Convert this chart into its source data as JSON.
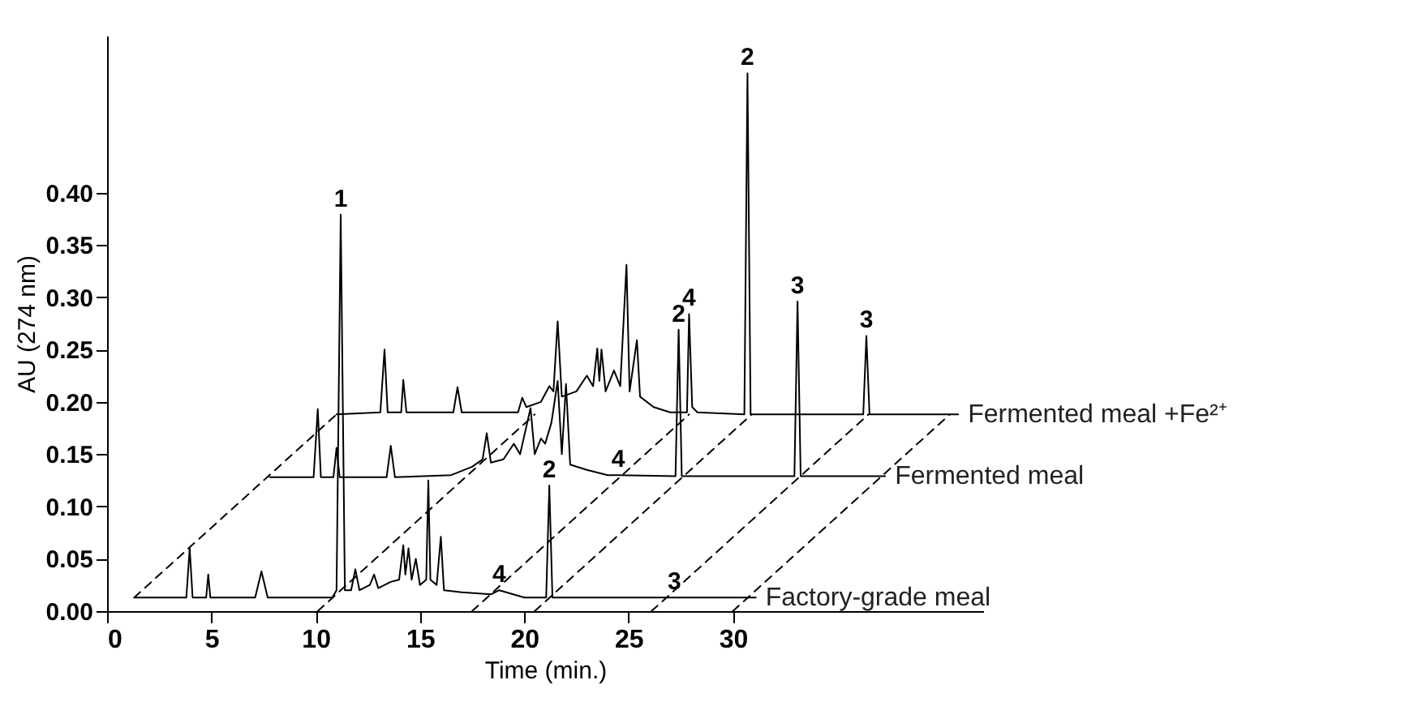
{
  "chart_data": {
    "type": "line",
    "xlabel": "Time (min.)",
    "ylabel": "AU (274 nm)",
    "xlim": [
      0,
      42
    ],
    "xticks": [
      0,
      5,
      10,
      15,
      20,
      25,
      30
    ],
    "ylim": [
      0,
      0.55
    ],
    "yticks": [
      {
        "value": 0,
        "label": "0.00"
      },
      {
        "value": 0.05,
        "label": "0.05"
      },
      {
        "value": 0.1,
        "label": "0.10"
      },
      {
        "value": 0.15,
        "label": "0.15"
      },
      {
        "value": 0.2,
        "label": "0.20"
      },
      {
        "value": 0.25,
        "label": "0.25"
      },
      {
        "value": 0.3,
        "label": "0.30"
      },
      {
        "value": 0.35,
        "label": "0.35"
      },
      {
        "value": 0.4,
        "label": "0.40"
      }
    ],
    "grid": false,
    "marker": "none",
    "series": [
      {
        "name": "Factory-grade meal",
        "color": "#000000",
        "line_style": "solid",
        "x": [
          1.3,
          3.8,
          3.96,
          4.1,
          4.75,
          4.85,
          4.95,
          7.1,
          7.4,
          7.7,
          10.8,
          11.0,
          11.2,
          11.4,
          11.7,
          11.9,
          12.1,
          12.6,
          12.8,
          13.0,
          13.6,
          14.0,
          14.2,
          14.3,
          14.45,
          14.6,
          14.8,
          15.0,
          15.3,
          15.4,
          15.5,
          15.8,
          16.0,
          16.15,
          17.0,
          18.4,
          18.8,
          20.0,
          21.05,
          21.2,
          21.35,
          27.2,
          31.1
        ],
        "values": [
          0.013,
          0.013,
          0.06,
          0.013,
          0.013,
          0.035,
          0.013,
          0.013,
          0.038,
          0.013,
          0.013,
          0.02,
          0.379,
          0.02,
          0.02,
          0.04,
          0.02,
          0.025,
          0.035,
          0.022,
          0.028,
          0.03,
          0.063,
          0.035,
          0.06,
          0.03,
          0.05,
          0.025,
          0.03,
          0.125,
          0.03,
          0.025,
          0.071,
          0.02,
          0.018,
          0.016,
          0.02,
          0.013,
          0.013,
          0.12,
          0.013,
          0.013,
          0.013
        ]
      },
      {
        "name": "Fermented meal",
        "color": "#000000",
        "line_style": "solid",
        "x": [
          7.8,
          9.9,
          10.1,
          10.25,
          10.85,
          11.0,
          11.15,
          13.4,
          13.6,
          13.8,
          16.5,
          17.5,
          18.0,
          18.2,
          18.4,
          19.0,
          19.5,
          19.8,
          20.3,
          20.5,
          20.8,
          21.0,
          21.3,
          21.6,
          21.8,
          22.0,
          22.2,
          23.0,
          24.0,
          24.5,
          27.25,
          27.4,
          27.55,
          32.95,
          33.1,
          33.25,
          37.3
        ],
        "values": [
          0.128,
          0.128,
          0.193,
          0.128,
          0.128,
          0.156,
          0.128,
          0.128,
          0.158,
          0.128,
          0.13,
          0.138,
          0.145,
          0.17,
          0.142,
          0.145,
          0.16,
          0.15,
          0.194,
          0.15,
          0.165,
          0.16,
          0.18,
          0.22,
          0.15,
          0.217,
          0.14,
          0.135,
          0.13,
          0.13,
          0.129,
          0.269,
          0.129,
          0.129,
          0.296,
          0.129,
          0.129
        ]
      },
      {
        "name": "Fermented meal +Fe²⁺",
        "color": "#000000",
        "line_style": "solid",
        "x": [
          11.0,
          13.1,
          13.3,
          13.45,
          14.1,
          14.2,
          14.35,
          16.6,
          16.8,
          17.0,
          19.7,
          19.9,
          20.1,
          20.8,
          21.2,
          21.4,
          21.6,
          21.8,
          22.5,
          23.0,
          23.3,
          23.5,
          23.6,
          23.7,
          23.9,
          24.3,
          24.6,
          24.9,
          25.05,
          25.4,
          25.55,
          26.2,
          27.0,
          27.8,
          27.9,
          28.05,
          28.3,
          30.55,
          30.7,
          30.85,
          36.25,
          36.4,
          36.55,
          40.8
        ],
        "values": [
          0.188,
          0.19,
          0.25,
          0.19,
          0.19,
          0.221,
          0.19,
          0.19,
          0.214,
          0.19,
          0.19,
          0.204,
          0.195,
          0.2,
          0.215,
          0.21,
          0.277,
          0.205,
          0.21,
          0.225,
          0.215,
          0.251,
          0.22,
          0.25,
          0.21,
          0.23,
          0.215,
          0.331,
          0.21,
          0.259,
          0.205,
          0.195,
          0.19,
          0.19,
          0.284,
          0.195,
          0.19,
          0.188,
          0.514,
          0.188,
          0.188,
          0.263,
          0.188,
          0.188
        ]
      },
      {
        "color": "#000000",
        "line_style": "dashed",
        "x": [
          1.3,
          11.0
        ],
        "values": [
          0.013,
          0.188
        ]
      },
      {
        "color": "#000000",
        "line_style": "dashed",
        "x": [
          10.1,
          20.5
        ],
        "values": [
          0,
          0.188
        ]
      },
      {
        "color": "#000000",
        "line_style": "dashed",
        "x": [
          17.5,
          27.9
        ],
        "values": [
          0,
          0.188
        ]
      },
      {
        "color": "#000000",
        "line_style": "dashed",
        "x": [
          20.5,
          30.9
        ],
        "values": [
          0,
          0.188
        ]
      },
      {
        "color": "#000000",
        "line_style": "dashed",
        "x": [
          26.1,
          36.5
        ],
        "values": [
          0,
          0.188
        ]
      },
      {
        "color": "#000000",
        "line_style": "dashed",
        "x": [
          30.0,
          40.4
        ],
        "values": [
          0,
          0.188
        ]
      }
    ],
    "annotations": [
      {
        "text": "1",
        "x": 11.2,
        "y": 0.379
      },
      {
        "text": "4",
        "x": 18.8,
        "y": 0.02
      },
      {
        "text": "2",
        "x": 21.2,
        "y": 0.12
      },
      {
        "text": "3",
        "x": 27.2,
        "y": 0.013
      },
      {
        "text": "4",
        "x": 24.5,
        "y": 0.13
      },
      {
        "text": "2",
        "x": 27.4,
        "y": 0.269
      },
      {
        "text": "3",
        "x": 33.1,
        "y": 0.296
      },
      {
        "text": "4",
        "x": 27.9,
        "y": 0.284
      },
      {
        "text": "2",
        "x": 30.7,
        "y": 0.514
      },
      {
        "text": "3",
        "x": 36.4,
        "y": 0.263
      }
    ]
  }
}
